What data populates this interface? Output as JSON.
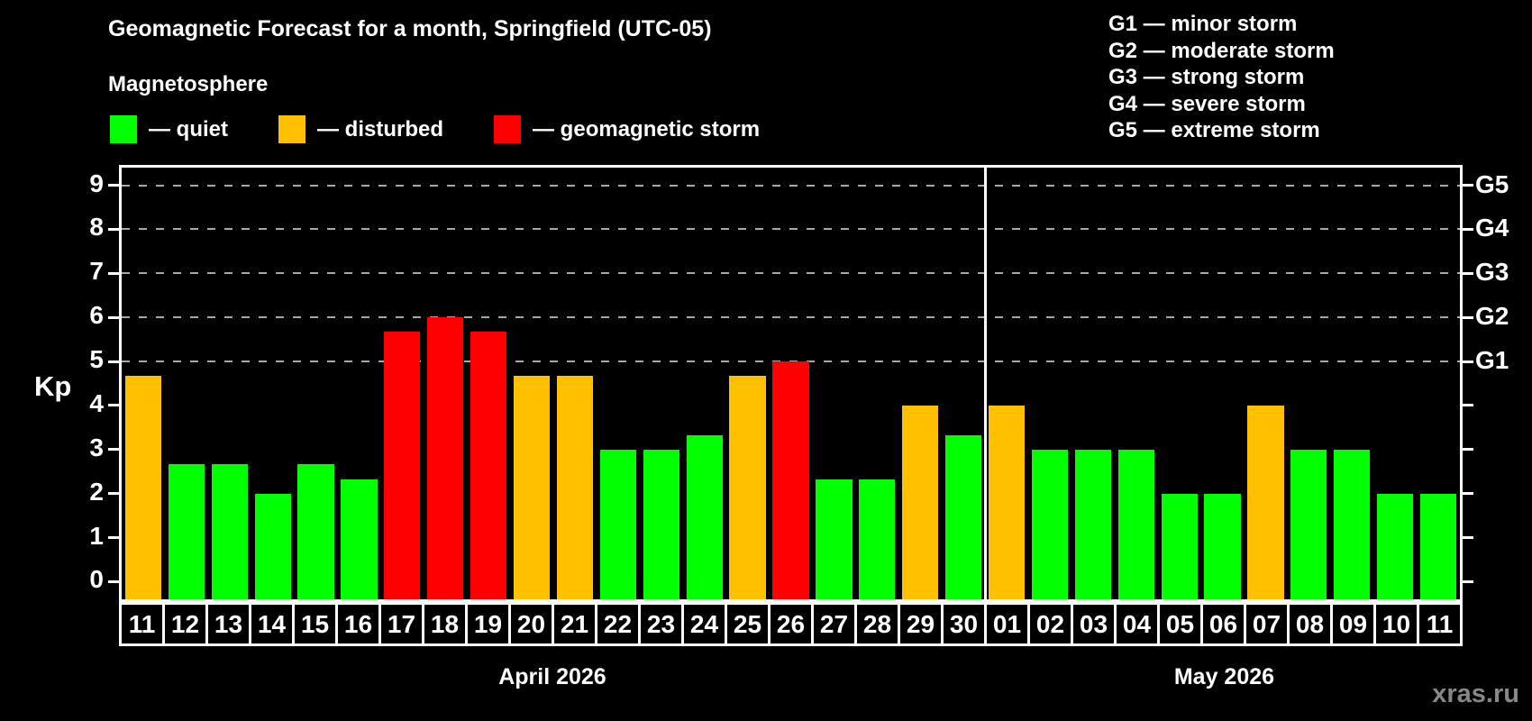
{
  "title": "Geomagnetic Forecast for a month, Springfield (UTC-05)",
  "subtitle": "Magnetosphere",
  "watermark": "xras.ru",
  "colors": {
    "quiet": "#00ff00",
    "disturbed": "#ffc000",
    "storm": "#ff0000",
    "background": "#000000",
    "grid": "#a8a8a8",
    "axis": "#ffffff",
    "watermark": "#878787"
  },
  "legend": [
    {
      "status": "quiet",
      "label": "— quiet"
    },
    {
      "status": "disturbed",
      "label": "— disturbed"
    },
    {
      "status": "storm",
      "label": "— geomagnetic storm"
    }
  ],
  "g_scale_legend": [
    {
      "code": "G1",
      "label": "minor storm"
    },
    {
      "code": "G2",
      "label": "moderate storm"
    },
    {
      "code": "G3",
      "label": "strong storm"
    },
    {
      "code": "G4",
      "label": "severe storm"
    },
    {
      "code": "G5",
      "label": "extreme storm"
    }
  ],
  "chart_data": {
    "type": "bar",
    "ylabel": "Kp",
    "ylim": [
      -0.4,
      9.4
    ],
    "yticks": [
      0,
      1,
      2,
      3,
      4,
      5,
      6,
      7,
      8,
      9
    ],
    "gridlines_at_kp": [
      5,
      6,
      7,
      8,
      9
    ],
    "right_axis": [
      {
        "kp": 5,
        "label": "G1"
      },
      {
        "kp": 6,
        "label": "G2"
      },
      {
        "kp": 7,
        "label": "G3"
      },
      {
        "kp": 8,
        "label": "G4"
      },
      {
        "kp": 9,
        "label": "G5"
      }
    ],
    "months": [
      {
        "label": "April 2026",
        "count": 20
      },
      {
        "label": "May 2026",
        "count": 11
      }
    ],
    "categories": [
      "11",
      "12",
      "13",
      "14",
      "15",
      "16",
      "17",
      "18",
      "19",
      "20",
      "21",
      "22",
      "23",
      "24",
      "25",
      "26",
      "27",
      "28",
      "29",
      "30",
      "01",
      "02",
      "03",
      "04",
      "05",
      "06",
      "07",
      "08",
      "09",
      "10",
      "11"
    ],
    "values": [
      4.67,
      2.67,
      2.67,
      2.0,
      2.67,
      2.33,
      5.67,
      6.0,
      5.67,
      4.67,
      4.67,
      3.0,
      3.0,
      3.33,
      4.67,
      5.0,
      2.33,
      2.33,
      4.0,
      3.33,
      4.0,
      3.0,
      3.0,
      3.0,
      2.0,
      2.0,
      4.0,
      3.0,
      3.0,
      2.0,
      2.0
    ],
    "statuses": [
      "disturbed",
      "quiet",
      "quiet",
      "quiet",
      "quiet",
      "quiet",
      "storm",
      "storm",
      "storm",
      "disturbed",
      "disturbed",
      "quiet",
      "quiet",
      "quiet",
      "disturbed",
      "storm",
      "quiet",
      "quiet",
      "disturbed",
      "quiet",
      "disturbed",
      "quiet",
      "quiet",
      "quiet",
      "quiet",
      "quiet",
      "disturbed",
      "quiet",
      "quiet",
      "quiet",
      "quiet"
    ]
  }
}
